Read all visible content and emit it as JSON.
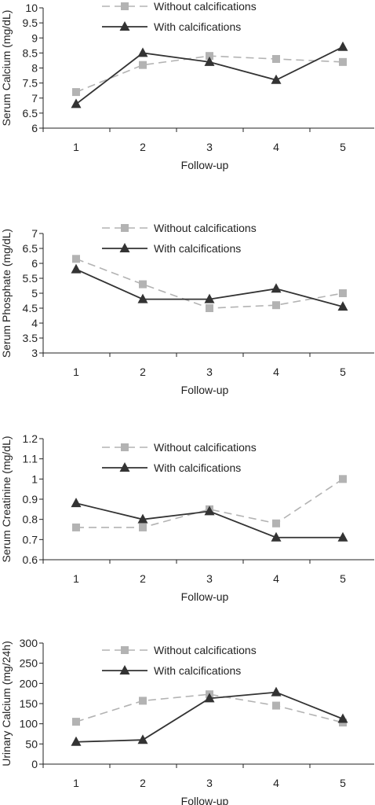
{
  "chart_data": [
    {
      "type": "line",
      "title": "",
      "xlabel": "Follow-up",
      "ylabel": "Serum Calcium (mg/dL)",
      "categories": [
        "1",
        "2",
        "3",
        "4",
        "5"
      ],
      "ylim": [
        6,
        10
      ],
      "yticks": [
        "6",
        "6.5",
        "7",
        "7.5",
        "8",
        "8.5",
        "9",
        "9.5",
        "10"
      ],
      "grid": false,
      "legend": "top",
      "series": [
        {
          "name": "Without calcifications",
          "values": [
            7.2,
            8.1,
            8.4,
            8.3,
            8.2
          ],
          "color": "#b3b3b3",
          "dash": true,
          "marker": "square"
        },
        {
          "name": "With calcifications",
          "values": [
            6.8,
            8.5,
            8.2,
            7.6,
            8.7
          ],
          "color": "#333333",
          "dash": false,
          "marker": "triangle"
        }
      ]
    },
    {
      "type": "line",
      "title": "",
      "xlabel": "Follow-up",
      "ylabel": "Serum Phosphate (mg/dL)",
      "categories": [
        "1",
        "2",
        "3",
        "4",
        "5"
      ],
      "ylim": [
        3,
        7
      ],
      "yticks": [
        "3",
        "3.5",
        "4",
        "4.5",
        "5",
        "5.5",
        "6",
        "6.5",
        "7"
      ],
      "grid": false,
      "legend": "top",
      "series": [
        {
          "name": "Without calcifications",
          "values": [
            6.15,
            5.3,
            4.5,
            4.6,
            5.0
          ],
          "color": "#b3b3b3",
          "dash": true,
          "marker": "square"
        },
        {
          "name": "With calcifications",
          "values": [
            5.8,
            4.8,
            4.8,
            5.15,
            4.55
          ],
          "color": "#333333",
          "dash": false,
          "marker": "triangle"
        }
      ]
    },
    {
      "type": "line",
      "title": "",
      "xlabel": "Follow-up",
      "ylabel": "Serum Creatinine (mg/dL)",
      "categories": [
        "1",
        "2",
        "3",
        "4",
        "5"
      ],
      "ylim": [
        0.6,
        1.2
      ],
      "yticks": [
        "0.6",
        "0.7",
        "0.8",
        "0.9",
        "1",
        "1.1",
        "1.2"
      ],
      "grid": false,
      "legend": "top",
      "series": [
        {
          "name": "Without calcifications",
          "values": [
            0.76,
            0.76,
            0.85,
            0.78,
            1.0
          ],
          "color": "#b3b3b3",
          "dash": true,
          "marker": "square"
        },
        {
          "name": "With calcifications",
          "values": [
            0.88,
            0.8,
            0.84,
            0.71,
            0.71
          ],
          "color": "#333333",
          "dash": false,
          "marker": "triangle"
        }
      ]
    },
    {
      "type": "line",
      "title": "",
      "xlabel": "Follow-up",
      "ylabel": "Urinary Calcium (mg/24h)",
      "categories": [
        "1",
        "2",
        "3",
        "4",
        "5"
      ],
      "ylim": [
        0,
        300
      ],
      "yticks": [
        "0",
        "50",
        "100",
        "150",
        "200",
        "250",
        "300"
      ],
      "grid": false,
      "legend": "top",
      "series": [
        {
          "name": "Without calcifications",
          "values": [
            105,
            157,
            173,
            145,
            103
          ],
          "color": "#b3b3b3",
          "dash": true,
          "marker": "square"
        },
        {
          "name": "With calcifications",
          "values": [
            55,
            60,
            163,
            178,
            112
          ],
          "color": "#333333",
          "dash": false,
          "marker": "triangle"
        }
      ]
    }
  ]
}
